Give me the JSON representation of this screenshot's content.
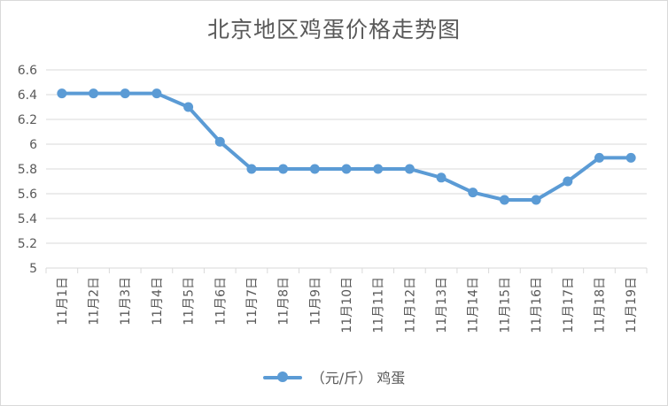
{
  "chart_data": {
    "type": "line",
    "title": "北京地区鸡蛋价格走势图",
    "xlabel": "",
    "ylabel": "",
    "categories": [
      "11月1日",
      "11月2日",
      "11月3日",
      "11月4日",
      "11月5日",
      "11月6日",
      "11月7日",
      "11月8日",
      "11月9日",
      "11月10日",
      "11月11日",
      "11月12日",
      "11月13日",
      "11月14日",
      "11月15日",
      "11月16日",
      "11月17日",
      "11月18日",
      "11月19日"
    ],
    "series": [
      {
        "name": "（元/斤） 鸡蛋",
        "values": [
          6.41,
          6.41,
          6.41,
          6.41,
          6.3,
          6.02,
          5.8,
          5.8,
          5.8,
          5.8,
          5.8,
          5.8,
          5.73,
          5.61,
          5.55,
          5.55,
          5.7,
          5.89,
          5.89
        ]
      }
    ],
    "ylim": [
      5,
      6.6
    ],
    "yticks": [
      "5",
      "5.2",
      "5.4",
      "5.6",
      "5.8",
      "6",
      "6.2",
      "6.4",
      "6.6"
    ],
    "grid": true,
    "legend": "bottom",
    "colors": {
      "series": "#5b9bd5",
      "grid": "#d9d9d9",
      "text": "#595959"
    }
  }
}
